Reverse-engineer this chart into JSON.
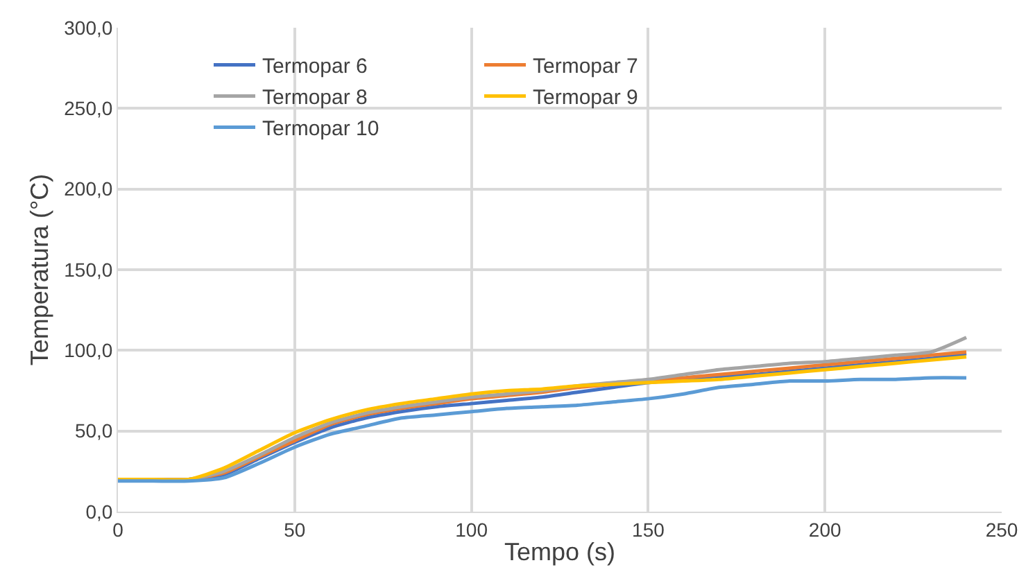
{
  "chart_data": {
    "type": "line",
    "xlabel": "Tempo (s)",
    "ylabel": "Temperatura (°C)",
    "x": [
      0,
      10,
      20,
      30,
      40,
      50,
      60,
      70,
      80,
      90,
      100,
      110,
      120,
      130,
      140,
      150,
      160,
      170,
      180,
      190,
      200,
      210,
      220,
      230,
      240
    ],
    "series": [
      {
        "name": "Termopar 6",
        "color": "#4472c4",
        "values": [
          20,
          20,
          20,
          23,
          33,
          43,
          52,
          58,
          62,
          65,
          67,
          69,
          71,
          74,
          77,
          80,
          82,
          84,
          85,
          87,
          89,
          91,
          93,
          95,
          98
        ]
      },
      {
        "name": "Termopar 7",
        "color": "#ed7d31",
        "values": [
          20,
          20,
          20,
          24,
          34,
          44,
          54,
          60,
          64,
          67,
          70,
          72,
          74,
          77,
          79,
          81,
          83,
          85,
          87,
          89,
          91,
          93,
          95,
          97,
          99
        ]
      },
      {
        "name": "Termopar 8",
        "color": "#a5a5a5",
        "values": [
          20,
          20,
          20,
          25,
          35,
          46,
          55,
          61,
          65,
          68,
          71,
          73,
          75,
          78,
          80,
          82,
          85,
          88,
          90,
          92,
          93,
          95,
          97,
          99,
          108
        ]
      },
      {
        "name": "Termopar 9",
        "color": "#ffc000",
        "values": [
          20,
          20,
          20,
          27,
          38,
          49,
          57,
          63,
          67,
          70,
          73,
          75,
          76,
          78,
          79,
          80,
          81,
          82,
          84,
          86,
          88,
          90,
          92,
          94,
          96
        ]
      },
      {
        "name": "Termopar 10",
        "color": "#5b9bd5",
        "values": [
          19,
          19,
          19,
          21,
          30,
          40,
          48,
          53,
          58,
          60,
          62,
          64,
          65,
          66,
          68,
          70,
          73,
          77,
          79,
          81,
          81,
          82,
          82,
          83,
          83
        ]
      }
    ],
    "xlim": [
      0,
      250
    ],
    "xticks": [
      0,
      50,
      100,
      150,
      200,
      250
    ],
    "ylim": [
      0,
      300
    ],
    "yticks": [
      {
        "value": 0,
        "label": "0,0"
      },
      {
        "value": 50,
        "label": "50,0"
      },
      {
        "value": 100,
        "label": "100,0"
      },
      {
        "value": 150,
        "label": "150,0"
      },
      {
        "value": 200,
        "label": "200,0"
      },
      {
        "value": 250,
        "label": "250,0"
      },
      {
        "value": 300,
        "label": "300,0"
      }
    ],
    "grid": true,
    "legend": "top",
    "marker": "none",
    "line_style": "solid"
  }
}
